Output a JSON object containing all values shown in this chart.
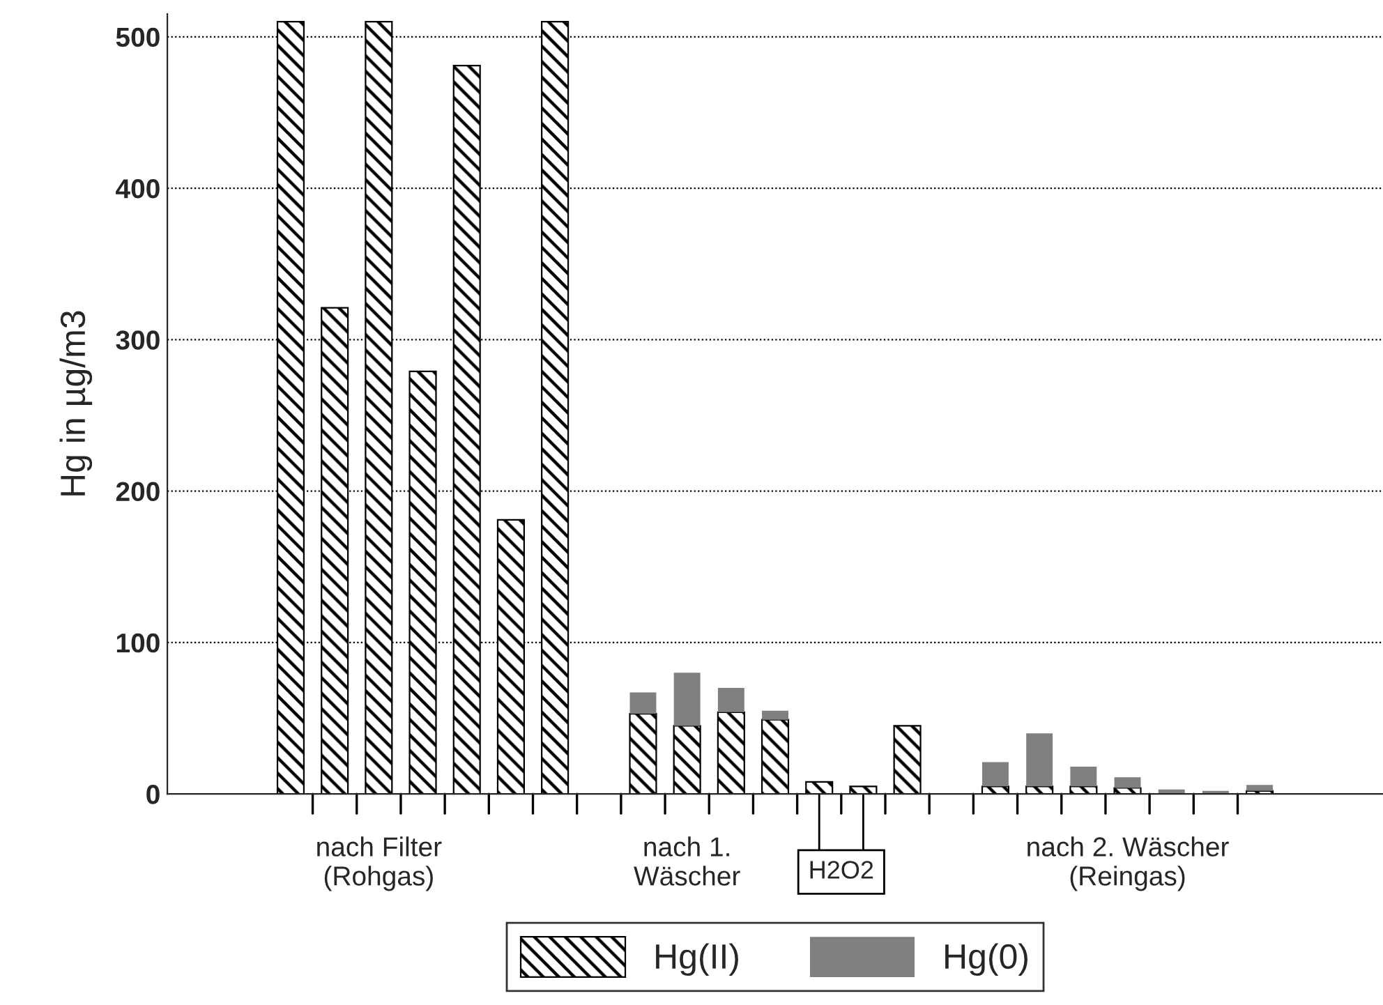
{
  "chart_data": {
    "type": "bar",
    "stacked": true,
    "ylabel": "Hg in µg/m3",
    "categories": [
      null,
      null,
      "nach Filter\n(Rohgas)",
      null,
      null,
      null,
      null,
      null,
      null,
      "nach 1.\nWäscher",
      null,
      null,
      null,
      null,
      null,
      null,
      null,
      null,
      null,
      "nach 2. Wäscher\n(Reingas)",
      null,
      null,
      null
    ],
    "series": [
      {
        "name": "Hg(II)",
        "color": "#000000",
        "values": [
          510,
          321,
          510,
          279,
          481,
          181,
          510,
          null,
          53,
          45,
          54,
          49,
          8,
          5,
          45,
          null,
          5,
          5,
          5,
          4,
          null,
          null,
          2
        ]
      },
      {
        "name": "Hg(0)",
        "color": "#808080",
        "values": [
          null,
          null,
          null,
          null,
          null,
          null,
          null,
          null,
          14,
          35,
          16,
          6,
          null,
          null,
          null,
          null,
          16,
          35,
          13,
          7,
          3,
          2,
          4
        ]
      }
    ],
    "ylim": [
      0,
      515
    ],
    "yticks": [
      0,
      100,
      200,
      300,
      400,
      500
    ],
    "grid": "y",
    "legend": "bottom",
    "annotations": [
      "H2O2"
    ]
  }
}
